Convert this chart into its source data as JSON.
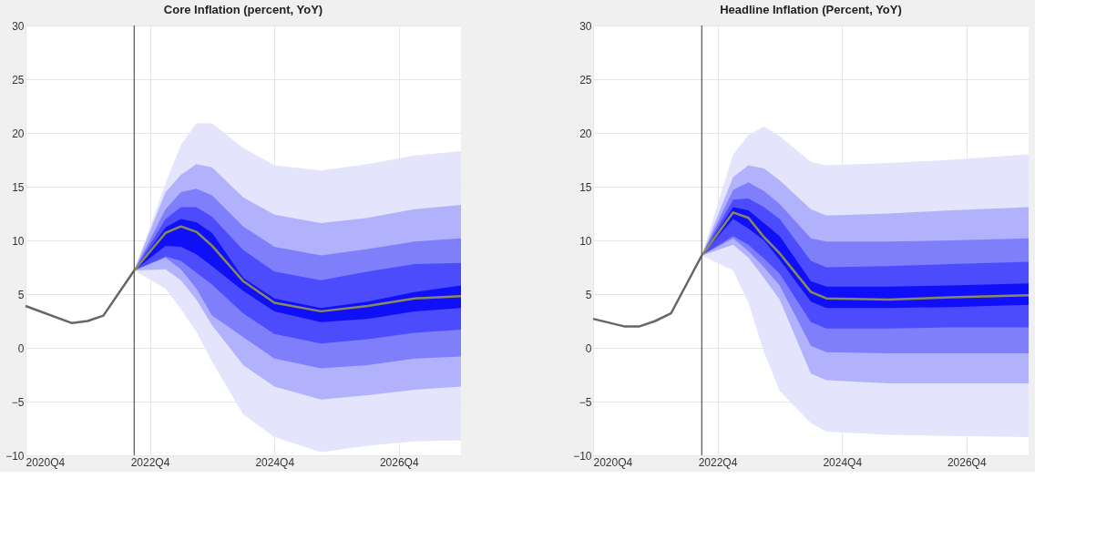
{
  "chart_data": [
    {
      "type": "line",
      "title": "Core Inflation (percent, YoY)",
      "xlim": [
        "2020-10",
        "2027-10"
      ],
      "xticks": [
        {
          "value": "2020-10",
          "label": "2020Q4"
        },
        {
          "value": "2022-10",
          "label": "2022Q4"
        },
        {
          "value": "2024-10",
          "label": "2024Q4"
        },
        {
          "value": "2026-10",
          "label": "2026Q4"
        }
      ],
      "ylim": [
        -10,
        30
      ],
      "yticks": [
        -10,
        -5,
        0,
        5,
        10,
        15,
        20,
        25,
        30
      ],
      "grid": true,
      "ref_lines": [
        {
          "axis": "x",
          "value": "2022-07",
          "color": "#555555"
        }
      ],
      "series": [
        {
          "type": "line",
          "color": "#e4e4fc",
          "x": [
            "2022-07",
            "2023-01",
            "2023-04",
            "2023-07",
            "2023-10",
            "2024-04",
            "2024-10",
            "2025-07",
            "2026-04",
            "2027-01",
            "2027-10"
          ],
          "values": [
            null,
            null,
            null,
            null,
            null,
            null,
            null,
            null,
            null,
            null,
            null
          ],
          "lower": [
            7.2,
            5.5,
            3.6,
            1.5,
            -1.3,
            -6.2,
            -8.3,
            -9.7,
            -9.1,
            -8.7,
            -8.6
          ],
          "upper": [
            7.2,
            15.3,
            18.9,
            20.9,
            20.9,
            18.6,
            17.0,
            16.5,
            17.1,
            17.9,
            18.3
          ]
        },
        {
          "type": "line",
          "color": "#b2b2fc",
          "x": [
            "2022-07",
            "2023-01",
            "2023-04",
            "2023-07",
            "2023-10",
            "2024-04",
            "2024-10",
            "2025-07",
            "2026-04",
            "2027-01",
            "2027-10"
          ],
          "values": [
            null,
            null,
            null,
            null,
            null,
            null,
            null,
            null,
            null,
            null,
            null
          ],
          "lower": [
            7.2,
            7.3,
            6.3,
            4.5,
            2.1,
            -1.6,
            -3.6,
            -4.8,
            -4.4,
            -3.9,
            -3.6
          ],
          "upper": [
            7.2,
            14.5,
            16.1,
            17.1,
            16.8,
            14.0,
            12.4,
            11.6,
            12.1,
            12.9,
            13.3
          ]
        },
        {
          "type": "line",
          "color": "#7f7ffc",
          "x": [
            "2022-07",
            "2023-01",
            "2023-04",
            "2023-07",
            "2023-10",
            "2024-04",
            "2024-10",
            "2025-07",
            "2026-04",
            "2027-01",
            "2027-10"
          ],
          "values": [
            null,
            null,
            null,
            null,
            null,
            null,
            null,
            null,
            null,
            null,
            null
          ],
          "lower": [
            7.2,
            8.4,
            7.3,
            5.5,
            3.0,
            1.0,
            -1.0,
            -1.9,
            -1.6,
            -1.0,
            -0.8
          ],
          "upper": [
            7.2,
            12.9,
            14.5,
            14.8,
            14.2,
            11.3,
            9.4,
            8.6,
            9.2,
            9.9,
            10.2
          ]
        },
        {
          "type": "line",
          "color": "#4c4cfc",
          "x": [
            "2022-07",
            "2023-01",
            "2023-04",
            "2023-07",
            "2023-10",
            "2024-04",
            "2024-10",
            "2025-07",
            "2026-04",
            "2027-01",
            "2027-10"
          ],
          "values": [
            null,
            null,
            null,
            null,
            null,
            null,
            null,
            null,
            null,
            null,
            null
          ],
          "lower": [
            7.2,
            8.5,
            8.1,
            7.0,
            5.9,
            3.2,
            1.3,
            0.4,
            0.8,
            1.4,
            1.7
          ],
          "upper": [
            7.2,
            12.0,
            13.1,
            13.1,
            12.2,
            9.1,
            7.1,
            6.3,
            7.1,
            7.8,
            7.9
          ]
        },
        {
          "type": "line",
          "color": "#1010f8",
          "x": [
            "2022-07",
            "2023-01",
            "2023-04",
            "2023-07",
            "2023-10",
            "2024-04",
            "2024-10",
            "2025-07",
            "2026-04",
            "2027-01",
            "2027-10"
          ],
          "values": [
            null,
            null,
            null,
            null,
            null,
            null,
            null,
            null,
            null,
            null,
            null
          ],
          "lower": [
            7.2,
            9.5,
            9.4,
            8.7,
            7.6,
            5.3,
            3.4,
            2.4,
            2.7,
            3.4,
            3.7
          ],
          "upper": [
            7.2,
            11.2,
            12.0,
            11.7,
            10.7,
            6.5,
            4.6,
            3.7,
            4.3,
            5.2,
            5.8
          ]
        },
        {
          "type": "line",
          "color": "#666666",
          "x": [
            "2020-10",
            "2021-07",
            "2021-10",
            "2022-01",
            "2022-07"
          ],
          "values": [
            3.9,
            2.3,
            2.5,
            3.0,
            7.2
          ]
        },
        {
          "type": "line",
          "color": "#8a8a5c",
          "x": [
            "2022-07",
            "2023-01",
            "2023-04",
            "2023-07",
            "2023-10",
            "2024-04",
            "2024-10",
            "2025-07",
            "2026-04",
            "2027-01",
            "2027-10"
          ],
          "values": [
            7.2,
            10.7,
            11.3,
            10.8,
            9.5,
            6.2,
            4.2,
            3.4,
            3.9,
            4.6,
            4.8
          ]
        }
      ]
    },
    {
      "type": "line",
      "title": "Headline Inflation (Percent, YoY)",
      "xlim": [
        "2020-10",
        "2027-10"
      ],
      "xticks": [
        {
          "value": "2020-10",
          "label": "2020Q4"
        },
        {
          "value": "2022-10",
          "label": "2022Q4"
        },
        {
          "value": "2024-10",
          "label": "2024Q4"
        },
        {
          "value": "2026-10",
          "label": "2026Q4"
        }
      ],
      "ylim": [
        -10,
        30
      ],
      "yticks": [
        -10,
        -5,
        0,
        5,
        10,
        15,
        20,
        25,
        30
      ],
      "grid": true,
      "ref_lines": [
        {
          "axis": "x",
          "value": "2022-07",
          "color": "#555555"
        }
      ],
      "series": [
        {
          "type": "line",
          "color": "#e4e4fc",
          "x": [
            "2022-07",
            "2023-01",
            "2023-04",
            "2023-07",
            "2023-10",
            "2024-04",
            "2024-07",
            "2025-07",
            "2026-07",
            "2027-10"
          ],
          "values": [
            null,
            null,
            null,
            null,
            null,
            null,
            null,
            null,
            null,
            null
          ],
          "lower": [
            8.6,
            7.2,
            4.2,
            -0.4,
            -4.0,
            -7.0,
            -7.8,
            -8.1,
            -8.2,
            -8.3
          ],
          "upper": [
            8.6,
            18.0,
            19.8,
            20.6,
            19.7,
            17.3,
            17.0,
            17.2,
            17.5,
            18.0
          ]
        },
        {
          "type": "line",
          "color": "#b2b2fc",
          "x": [
            "2022-07",
            "2023-01",
            "2023-04",
            "2023-07",
            "2023-10",
            "2024-04",
            "2024-07",
            "2025-07",
            "2026-07",
            "2027-10"
          ],
          "values": [
            null,
            null,
            null,
            null,
            null,
            null,
            null,
            null,
            null,
            null
          ],
          "lower": [
            8.6,
            9.6,
            8.4,
            6.5,
            4.5,
            -2.4,
            -3.0,
            -3.3,
            -3.3,
            -3.3
          ],
          "upper": [
            8.6,
            15.9,
            17.0,
            16.7,
            15.6,
            12.9,
            12.3,
            12.5,
            12.8,
            13.1
          ]
        },
        {
          "type": "line",
          "color": "#7f7ffc",
          "x": [
            "2022-07",
            "2023-01",
            "2023-04",
            "2023-07",
            "2023-10",
            "2024-04",
            "2024-07",
            "2025-07",
            "2026-07",
            "2027-10"
          ],
          "values": [
            null,
            null,
            null,
            null,
            null,
            null,
            null,
            null,
            null,
            null
          ],
          "lower": [
            8.6,
            10.2,
            9.0,
            7.5,
            5.8,
            0.2,
            -0.4,
            -0.5,
            -0.5,
            -0.5
          ],
          "upper": [
            8.6,
            14.7,
            15.4,
            14.6,
            13.4,
            10.2,
            9.9,
            9.9,
            10.0,
            10.2
          ]
        },
        {
          "type": "line",
          "color": "#4c4cfc",
          "x": [
            "2022-07",
            "2023-01",
            "2023-04",
            "2023-07",
            "2023-10",
            "2024-04",
            "2024-07",
            "2025-07",
            "2026-07",
            "2027-10"
          ],
          "values": [
            null,
            null,
            null,
            null,
            null,
            null,
            null,
            null,
            null,
            null
          ],
          "lower": [
            8.6,
            10.4,
            9.6,
            8.3,
            6.9,
            2.4,
            1.8,
            1.8,
            1.9,
            1.9
          ],
          "upper": [
            8.6,
            13.8,
            13.9,
            13.1,
            12.0,
            8.1,
            7.5,
            7.6,
            7.8,
            8.0
          ]
        },
        {
          "type": "line",
          "color": "#1010f8",
          "x": [
            "2022-07",
            "2023-01",
            "2023-04",
            "2023-07",
            "2023-10",
            "2024-04",
            "2024-07",
            "2025-07",
            "2026-07",
            "2027-10"
          ],
          "values": [
            null,
            null,
            null,
            null,
            null,
            null,
            null,
            null,
            null,
            null
          ],
          "lower": [
            8.6,
            12.0,
            11.1,
            10.0,
            8.2,
            4.3,
            3.7,
            3.7,
            3.8,
            4.0
          ],
          "upper": [
            8.6,
            13.1,
            12.8,
            11.6,
            10.4,
            6.2,
            5.7,
            5.7,
            5.8,
            6.0
          ]
        },
        {
          "type": "line",
          "color": "#666666",
          "x": [
            "2020-10",
            "2021-04",
            "2021-07",
            "2021-10",
            "2022-01",
            "2022-07"
          ],
          "values": [
            2.7,
            2.0,
            2.0,
            2.5,
            3.2,
            8.6
          ]
        },
        {
          "type": "line",
          "color": "#8a8a5c",
          "x": [
            "2022-07",
            "2023-01",
            "2023-04",
            "2023-07",
            "2023-10",
            "2024-04",
            "2024-07",
            "2025-07",
            "2026-07",
            "2027-10"
          ],
          "values": [
            8.6,
            12.6,
            12.1,
            10.3,
            8.8,
            5.2,
            4.6,
            4.5,
            4.7,
            4.9
          ]
        }
      ]
    }
  ]
}
